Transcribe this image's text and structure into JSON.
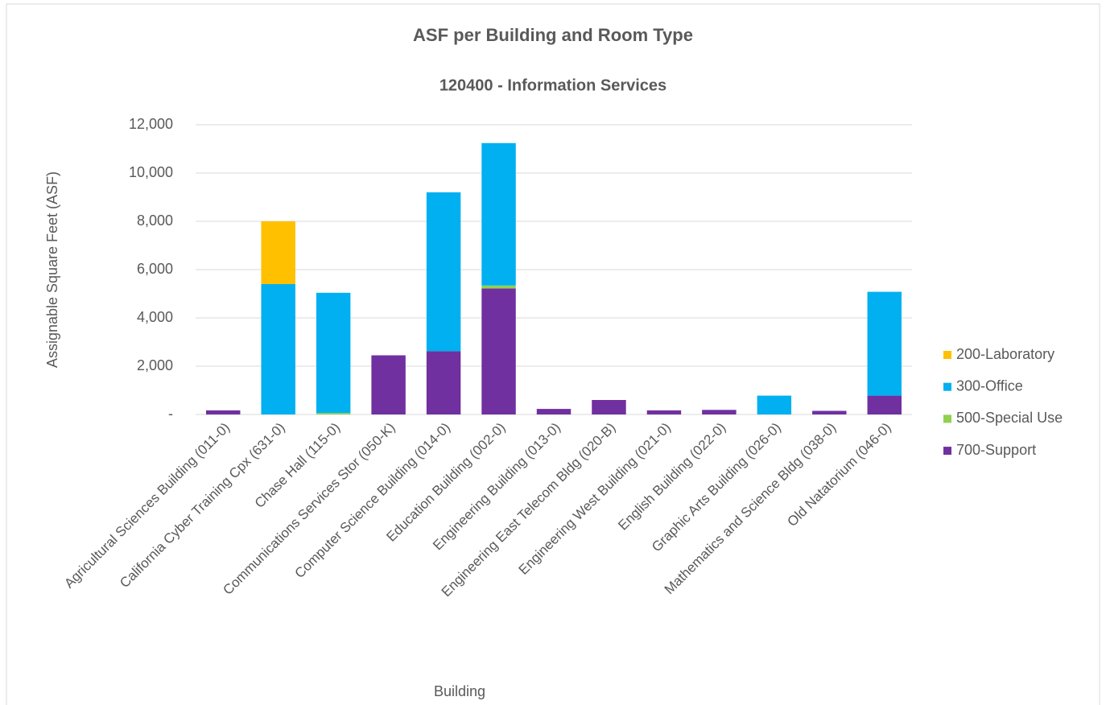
{
  "chart_data": {
    "type": "stacked_bar",
    "title": "ASF per Building and Room Type",
    "subtitle": "120400 - Information Services",
    "x_label": "Building",
    "y_label": "Assignable Square Feet (ASF)",
    "categories": [
      "Agricultural Sciences Building (011-0)",
      "California Cyber Training Cpx (631-0)",
      "Chase Hall (115-0)",
      "Communications Services Stor (050-K)",
      "Computer Science Building (014-0)",
      "Education Building (002-0)",
      "Engineering Building (013-0)",
      "Engineering East Telecom Bldg (020-B)",
      "Engineering West Building (021-0)",
      "English Building (022-0)",
      "Graphic Arts Building (026-0)",
      "Mathematics and Science Bldg (038-0)",
      "Old Natatorium (046-0)"
    ],
    "series": [
      {
        "name": "200-Laboratory",
        "color": "#FFC000",
        "values": [
          0,
          2600,
          0,
          0,
          0,
          0,
          0,
          0,
          0,
          0,
          0,
          0,
          0
        ]
      },
      {
        "name": "300-Office",
        "color": "#00B0F0",
        "values": [
          0,
          5400,
          4980,
          0,
          6580,
          5900,
          0,
          0,
          0,
          0,
          780,
          0,
          4300
        ]
      },
      {
        "name": "500-Special Use",
        "color": "#92D050",
        "values": [
          0,
          0,
          60,
          0,
          0,
          120,
          0,
          0,
          0,
          0,
          0,
          0,
          0
        ]
      },
      {
        "name": "700-Support",
        "color": "#7030A0",
        "values": [
          170,
          0,
          0,
          2450,
          2620,
          5220,
          230,
          600,
          170,
          190,
          0,
          150,
          780
        ]
      }
    ],
    "stack_order": "bottom_to_top_reverse_legend",
    "ylim": [
      0,
      12000
    ],
    "yticks": [
      {
        "value": 0,
        "label": "-"
      },
      {
        "value": 2000,
        "label": "2,000"
      },
      {
        "value": 4000,
        "label": "4,000"
      },
      {
        "value": 6000,
        "label": "6,000"
      },
      {
        "value": 8000,
        "label": "8,000"
      },
      {
        "value": 10000,
        "label": "10,000"
      },
      {
        "value": 12000,
        "label": "12,000"
      }
    ],
    "grid": true,
    "legend": "right"
  }
}
